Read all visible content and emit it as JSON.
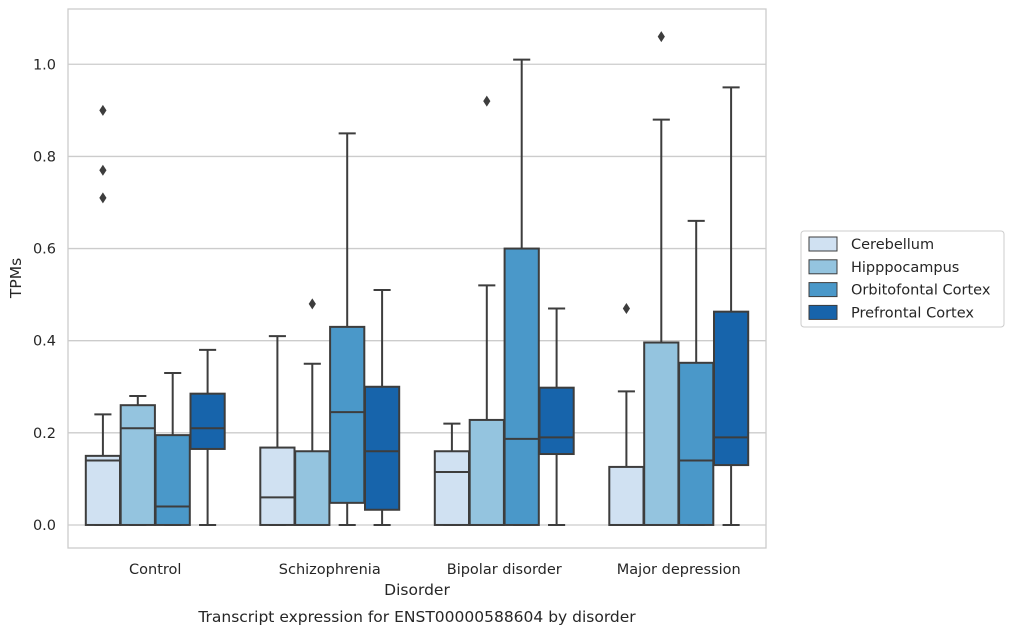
{
  "caption": "Transcript expression for ENST00000588604 by disorder",
  "chart_data": {
    "type": "box",
    "title": "",
    "xlabel": "Disorder",
    "ylabel": "TPMs",
    "ylim": [
      -0.05,
      1.12
    ],
    "yticks": [
      0.0,
      0.2,
      0.4,
      0.6,
      0.8,
      1.0
    ],
    "ytick_labels": [
      "0.0",
      "0.2",
      "0.4",
      "0.6",
      "0.8",
      "1.0"
    ],
    "grid": true,
    "legend_position": "right",
    "categories": [
      "Control",
      "Schizophrenia",
      "Bipolar disorder",
      "Major depression"
    ],
    "series": [
      {
        "name": "Cerebellum",
        "color": "#d0e1f2",
        "boxes": [
          {
            "whisker_low": 0.0,
            "q1": 0.0,
            "median": 0.14,
            "q3": 0.15,
            "whisker_high": 0.24,
            "outliers": [
              0.9,
              0.77,
              0.71
            ]
          },
          {
            "whisker_low": 0.0,
            "q1": 0.0,
            "median": 0.06,
            "q3": 0.168,
            "whisker_high": 0.41,
            "outliers": []
          },
          {
            "whisker_low": 0.0,
            "q1": 0.0,
            "median": 0.115,
            "q3": 0.16,
            "whisker_high": 0.22,
            "outliers": []
          },
          {
            "whisker_low": 0.0,
            "q1": 0.0,
            "median": 0.0,
            "q3": 0.126,
            "whisker_high": 0.29,
            "outliers": [
              0.47
            ]
          }
        ]
      },
      {
        "name": "Hipppocampus",
        "color": "#94c4df",
        "boxes": [
          {
            "whisker_low": 0.0,
            "q1": 0.0,
            "median": 0.21,
            "q3": 0.26,
            "whisker_high": 0.28,
            "outliers": []
          },
          {
            "whisker_low": 0.0,
            "q1": 0.0,
            "median": 0.0,
            "q3": 0.16,
            "whisker_high": 0.35,
            "outliers": [
              0.48
            ]
          },
          {
            "whisker_low": 0.0,
            "q1": 0.0,
            "median": 0.0,
            "q3": 0.228,
            "whisker_high": 0.52,
            "outliers": [
              0.92
            ]
          },
          {
            "whisker_low": 0.0,
            "q1": 0.0,
            "median": 0.0,
            "q3": 0.396,
            "whisker_high": 0.88,
            "outliers": [
              1.06
            ]
          }
        ]
      },
      {
        "name": "Orbitofontal Cortex",
        "color": "#4a98c9",
        "boxes": [
          {
            "whisker_low": 0.0,
            "q1": 0.0,
            "median": 0.04,
            "q3": 0.195,
            "whisker_high": 0.33,
            "outliers": []
          },
          {
            "whisker_low": 0.0,
            "q1": 0.048,
            "median": 0.245,
            "q3": 0.43,
            "whisker_high": 0.85,
            "outliers": []
          },
          {
            "whisker_low": 0.0,
            "q1": 0.0,
            "median": 0.187,
            "q3": 0.6,
            "whisker_high": 1.01,
            "outliers": []
          },
          {
            "whisker_low": 0.0,
            "q1": 0.0,
            "median": 0.14,
            "q3": 0.352,
            "whisker_high": 0.66,
            "outliers": []
          }
        ]
      },
      {
        "name": "Prefrontal Cortex",
        "color": "#1764ab",
        "boxes": [
          {
            "whisker_low": 0.0,
            "q1": 0.165,
            "median": 0.21,
            "q3": 0.285,
            "whisker_high": 0.38,
            "outliers": []
          },
          {
            "whisker_low": 0.0,
            "q1": 0.033,
            "median": 0.16,
            "q3": 0.3,
            "whisker_high": 0.51,
            "outliers": []
          },
          {
            "whisker_low": 0.0,
            "q1": 0.154,
            "median": 0.19,
            "q3": 0.298,
            "whisker_high": 0.47,
            "outliers": []
          },
          {
            "whisker_low": 0.0,
            "q1": 0.13,
            "median": 0.19,
            "q3": 0.463,
            "whisker_high": 0.95,
            "outliers": []
          }
        ]
      }
    ]
  }
}
